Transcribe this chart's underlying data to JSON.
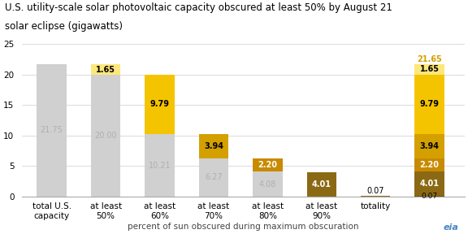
{
  "title_line1": "U.S. utility-scale solar photovoltaic capacity obscured at least 50% by August 21",
  "title_line2": "solar eclipse (gigawatts)",
  "xlabel": "percent of sun obscured during maximum obscuration",
  "categories": [
    "total U.S.\ncapacity",
    "at least\n50%",
    "at least\n60%",
    "at least\n70%",
    "at least\n80%",
    "at least\n90%",
    "totality",
    ""
  ],
  "ylim": [
    0,
    25
  ],
  "yticks": [
    0,
    5,
    10,
    15,
    20,
    25
  ],
  "bar_width": 0.55,
  "colors": {
    "gray": "#d0d0d0",
    "light_yellow": "#fce77a",
    "yellow": "#f5c400",
    "gold": "#d4a000",
    "gold2": "#c88a00",
    "dark_gold": "#8b6914",
    "totality_bar": "#6b5010"
  },
  "bars": [
    {
      "segments": [
        {
          "val": 21.75,
          "color": "gray"
        }
      ],
      "labels": [
        {
          "val": "21.75",
          "y_mid": true,
          "color": "#b0b0b0",
          "bold": false
        }
      ]
    },
    {
      "segments": [
        {
          "val": 20.0,
          "color": "gray"
        },
        {
          "val": 1.65,
          "color": "light_yellow"
        }
      ],
      "labels": [
        {
          "val": "20.00",
          "y_mid": true,
          "color": "#b0b0b0",
          "bold": false
        },
        {
          "val": "1.65",
          "y_mid": true,
          "color": "#000000",
          "bold": true
        }
      ]
    },
    {
      "segments": [
        {
          "val": 10.21,
          "color": "gray"
        },
        {
          "val": 9.79,
          "color": "yellow"
        }
      ],
      "labels": [
        {
          "val": "10.21",
          "y_mid": true,
          "color": "#b0b0b0",
          "bold": false
        },
        {
          "val": "9.79",
          "y_mid": true,
          "color": "#000000",
          "bold": true
        }
      ]
    },
    {
      "segments": [
        {
          "val": 6.27,
          "color": "gray"
        },
        {
          "val": 3.94,
          "color": "gold"
        }
      ],
      "labels": [
        {
          "val": "6.27",
          "y_mid": true,
          "color": "#b0b0b0",
          "bold": false
        },
        {
          "val": "3.94",
          "y_mid": true,
          "color": "#000000",
          "bold": true
        }
      ]
    },
    {
      "segments": [
        {
          "val": 4.08,
          "color": "gray"
        },
        {
          "val": 2.2,
          "color": "gold2"
        }
      ],
      "labels": [
        {
          "val": "4.08",
          "y_mid": true,
          "color": "#b0b0b0",
          "bold": false
        },
        {
          "val": "2.20",
          "y_mid": true,
          "color": "#ffffff",
          "bold": true
        }
      ]
    },
    {
      "segments": [
        {
          "val": 4.01,
          "color": "dark_gold"
        }
      ],
      "labels": [
        {
          "val": "4.01",
          "y_mid": true,
          "color": "#ffffff",
          "bold": true
        }
      ]
    },
    {
      "segments": [
        {
          "val": 0.07,
          "color": "dark_gold"
        }
      ],
      "labels": [
        {
          "val": "0.07",
          "above": true,
          "color": "#000000",
          "bold": false
        }
      ]
    }
  ],
  "stacked_bar": {
    "x": 7,
    "segments": [
      {
        "val": 0.07,
        "color": "#6b5010",
        "label": "0.07",
        "label_color": "#000000"
      },
      {
        "val": 4.01,
        "color": "#8b6914",
        "label": "4.01",
        "label_color": "#ffffff"
      },
      {
        "val": 2.2,
        "color": "#c88a00",
        "label": "2.20",
        "label_color": "#ffffff"
      },
      {
        "val": 3.94,
        "color": "#d4a000",
        "label": "3.94",
        "label_color": "#000000"
      },
      {
        "val": 9.79,
        "color": "#f5c400",
        "label": "9.79",
        "label_color": "#000000"
      },
      {
        "val": 1.65,
        "color": "#fce77a",
        "label": "1.65",
        "label_color": "#000000"
      }
    ],
    "top_label": "21.65",
    "top_label_color": "#d4a000"
  },
  "background_color": "#ffffff",
  "title_fontsize": 8.5,
  "tick_fontsize": 7.5,
  "label_fontsize": 7,
  "axis_label_fontsize": 7.5
}
